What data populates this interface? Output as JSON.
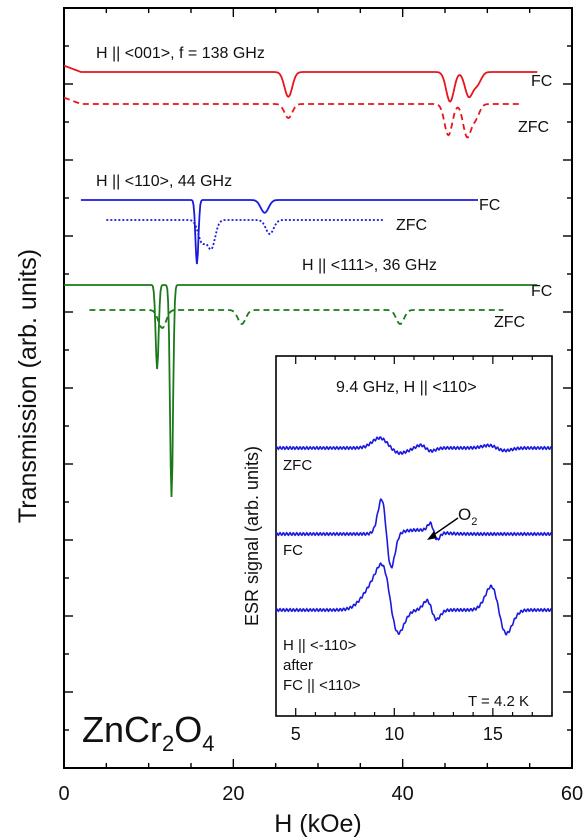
{
  "chart_data": [
    {
      "type": "line",
      "title": "",
      "xlabel": "H (kOe)",
      "ylabel": "Transmission (arb. units)",
      "xlim": [
        0,
        60
      ],
      "x_ticks": [
        "0",
        "20",
        "40",
        "60"
      ],
      "compound": {
        "base": "ZnCr",
        "sub1": "2",
        "mid": "O",
        "sub2": "4"
      },
      "groups": [
        {
          "label": "H || <001>, f = 138 GHz",
          "color": "#e8141c",
          "series": [
            {
              "name": "FC",
              "style": "solid",
              "x_range": [
                0,
                56
              ],
              "baseline_offset": 0,
              "dips": [
                {
                  "x": 26.5,
                  "depth": 0.62
                },
                {
                  "x": 45.6,
                  "depth": 0.74
                },
                {
                  "x": 47.8,
                  "depth": 0.6
                },
                {
                  "x": 48.8,
                  "depth": 0.3
                }
              ]
            },
            {
              "name": "ZFC",
              "style": "dashed",
              "x_range": [
                0,
                54
              ],
              "baseline_offset": 1,
              "dips": [
                {
                  "x": 26.5,
                  "depth": 0.35
                },
                {
                  "x": 45.4,
                  "depth": 0.78
                },
                {
                  "x": 47.6,
                  "depth": 0.8
                },
                {
                  "x": 48.6,
                  "depth": 0.35
                }
              ]
            }
          ]
        },
        {
          "label": "H || <110>, 44 GHz",
          "color": "#1a1adf",
          "series": [
            {
              "name": "FC",
              "style": "solid",
              "x_range": [
                2,
                49
              ],
              "baseline_offset": 0,
              "dips": [
                {
                  "x": 15.7,
                  "depth": 1.6
                },
                {
                  "x": 23.7,
                  "depth": 0.32
                }
              ]
            },
            {
              "name": "ZFC",
              "style": "dotted",
              "x_range": [
                5,
                38
              ],
              "baseline_offset": 1,
              "dips": [
                {
                  "x": 16.3,
                  "depth": 0.55
                },
                {
                  "x": 17.4,
                  "depth": 0.7
                },
                {
                  "x": 24.3,
                  "depth": 0.35
                }
              ]
            }
          ]
        },
        {
          "label": "H || <111>, 36 GHz",
          "color": "#1a7a1a",
          "series": [
            {
              "name": "FC",
              "style": "solid",
              "x_range": [
                0,
                56
              ],
              "baseline_offset": 0,
              "dips": [
                {
                  "x": 11.0,
                  "depth": 2.1
                },
                {
                  "x": 12.7,
                  "depth": 5.3
                }
              ]
            },
            {
              "name": "ZFC",
              "style": "dashed",
              "x_range": [
                3,
                52
              ],
              "baseline_offset": 1,
              "dips": [
                {
                  "x": 11.6,
                  "depth": 0.45
                },
                {
                  "x": 21.0,
                  "depth": 0.35
                },
                {
                  "x": 39.7,
                  "depth": 0.35
                }
              ]
            }
          ]
        }
      ]
    },
    {
      "type": "line",
      "title": "9.4 GHz, H || <110>",
      "xlabel": "",
      "ylabel": "ESR signal (arb. units)",
      "xlim": [
        4,
        18
      ],
      "x_ticks": [
        "5",
        "10",
        "15"
      ],
      "annotation": {
        "base": "O",
        "sub": "2"
      },
      "temperature": "T = 4.2 K",
      "color": "#1a1adf",
      "series": [
        {
          "name": "ZFC",
          "label_lines": [
            "ZFC"
          ]
        },
        {
          "name": "FC",
          "label_lines": [
            "FC"
          ]
        },
        {
          "name": "H || <-110> after FC || <110>",
          "label_lines": [
            "H || <-110>",
            "after",
            "FC || <110>"
          ]
        }
      ]
    }
  ]
}
